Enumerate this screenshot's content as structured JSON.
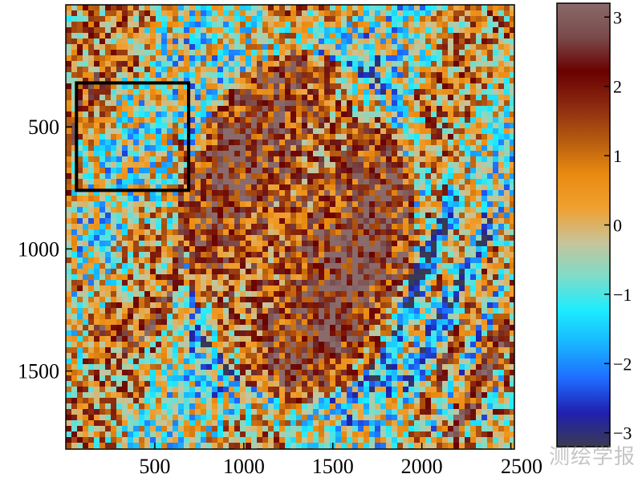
{
  "chart_data": {
    "type": "heatmap",
    "title": "",
    "xlabel": "",
    "ylabel": "",
    "x_ticks": [
      500,
      1000,
      1500,
      2000,
      2500
    ],
    "x_tick_labels": [
      "500",
      "1000",
      "1500",
      "2000",
      "2500"
    ],
    "y_ticks": [
      500,
      1000,
      1500
    ],
    "y_tick_labels": [
      "500",
      "1000",
      "1500"
    ],
    "xlim": [
      0,
      2520
    ],
    "ylim": [
      1820,
      0
    ],
    "y_inverted": true,
    "colorbar": {
      "range": [
        -3.2,
        3.2
      ],
      "ticks": [
        3,
        2,
        1,
        0,
        -1,
        -2,
        -3
      ],
      "tick_labels": [
        "3",
        "2",
        "1",
        "0",
        "−1",
        "−2",
        "−3"
      ],
      "colors_low_to_high": [
        "#3a3a52",
        "#2020b0",
        "#1e6cff",
        "#19b4ff",
        "#1cecff",
        "#7fdcc8",
        "#c8c39a",
        "#f0a030",
        "#e98a10",
        "#b45a10",
        "#8a2a10",
        "#6a0000",
        "#7a4a4a",
        "#8a6a6a"
      ]
    },
    "regions": [
      {
        "name": "central-blob",
        "cx": 1300,
        "cy": 900,
        "rx": 650,
        "ry": 720,
        "value": 2.2
      },
      {
        "name": "west-ring",
        "cx": 320,
        "cy": 800,
        "rx": 330,
        "ry": 560,
        "value": -1.2
      },
      {
        "name": "east-fringe",
        "cx": 2150,
        "cy": 1250,
        "rx": 330,
        "ry": 520,
        "value": 0.6
      }
    ],
    "highlight_box": {
      "x0": 60,
      "x1": 690,
      "y0": 320,
      "y1": 760
    }
  },
  "watermark": "测绘学报"
}
